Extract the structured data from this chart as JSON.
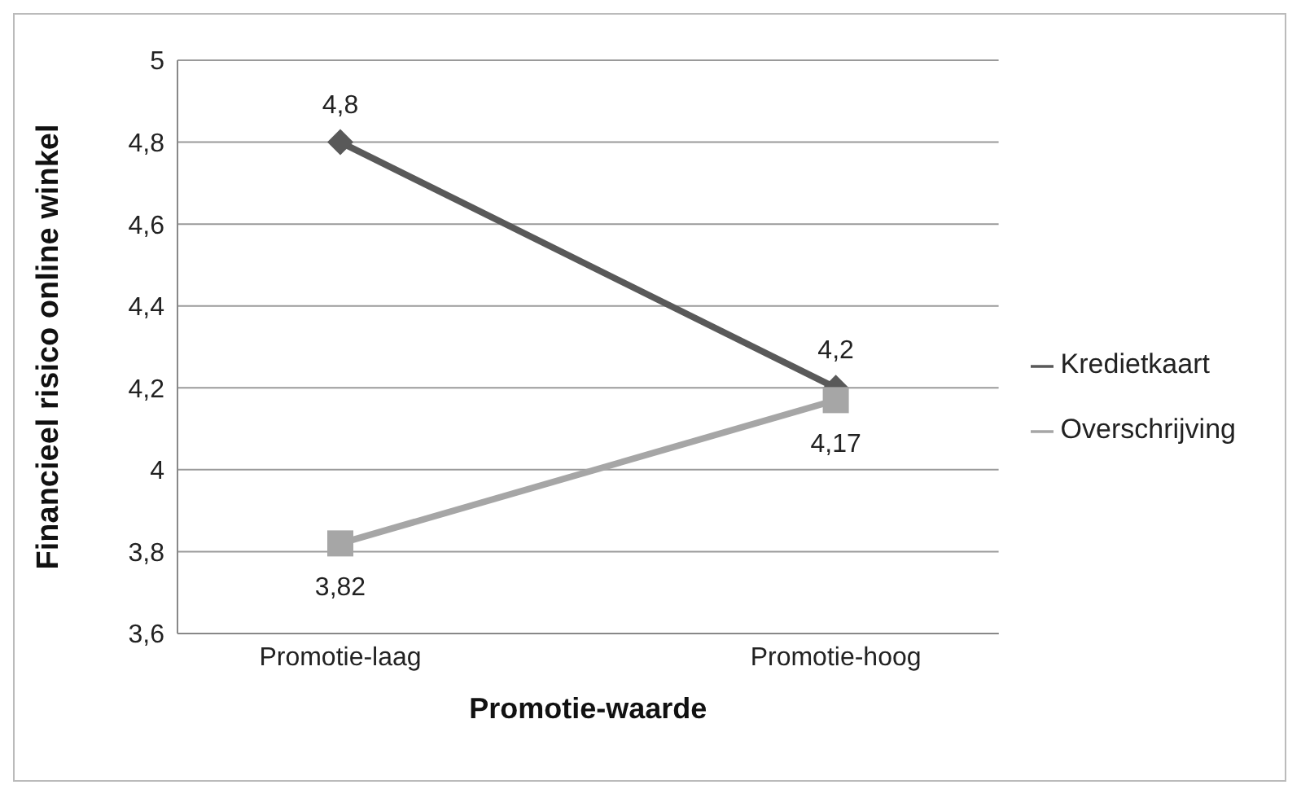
{
  "chart_data": {
    "type": "line",
    "xlabel": "Promotie-waarde",
    "ylabel": "Financieel risico online winkel",
    "categories": [
      "Promotie-laag",
      "Promotie-hoog"
    ],
    "series": [
      {
        "name": "Kredietkaart",
        "color": "#595959",
        "values": [
          4.8,
          4.2
        ],
        "marker": "diamond",
        "value_labels": [
          "4,8",
          "4,2"
        ]
      },
      {
        "name": "Overschrijving",
        "color": "#a6a6a6",
        "values": [
          3.82,
          4.17
        ],
        "marker": "square",
        "value_labels": [
          "3,82",
          "4,17"
        ]
      }
    ],
    "ylim": [
      3.6,
      5
    ],
    "yticks": [
      {
        "value": 3.6,
        "label": "3,6"
      },
      {
        "value": 3.8,
        "label": "3,8"
      },
      {
        "value": 4,
        "label": "4"
      },
      {
        "value": 4.2,
        "label": "4,2"
      },
      {
        "value": 4.4,
        "label": "4,4"
      },
      {
        "value": 4.6,
        "label": "4,6"
      },
      {
        "value": 4.8,
        "label": "4,8"
      },
      {
        "value": 5,
        "label": "5"
      }
    ],
    "grid": "y",
    "legend": "right",
    "line_style": "solid"
  }
}
